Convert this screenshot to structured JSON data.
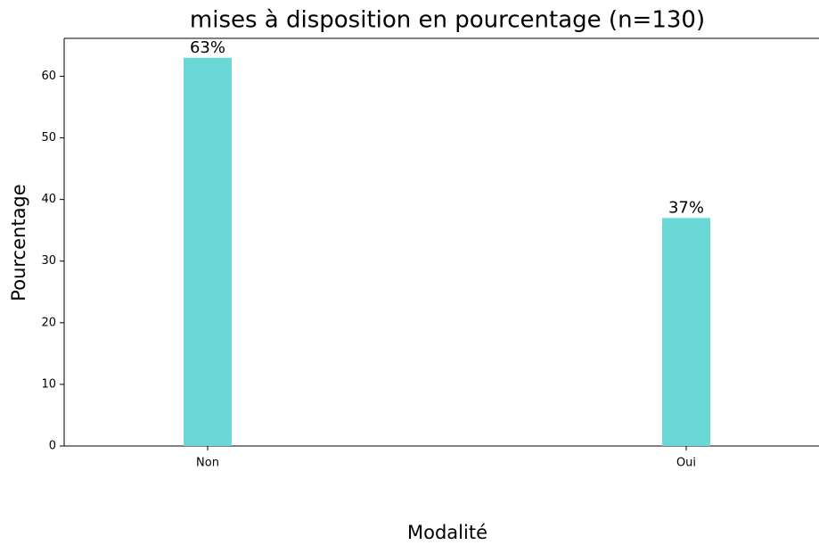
{
  "chart_data": {
    "type": "bar",
    "title": "mises à disposition en pourcentage (n=130)",
    "xlabel": "Modalité",
    "ylabel": "Pourcentage",
    "categories": [
      "Non",
      "Oui"
    ],
    "values": [
      63,
      37
    ],
    "value_labels": [
      "63%",
      "37%"
    ],
    "color": "#6bd8d8",
    "ylim": [
      0,
      66.15
    ],
    "yticks": [
      0,
      10,
      20,
      30,
      40,
      50,
      60
    ],
    "grid": false
  }
}
